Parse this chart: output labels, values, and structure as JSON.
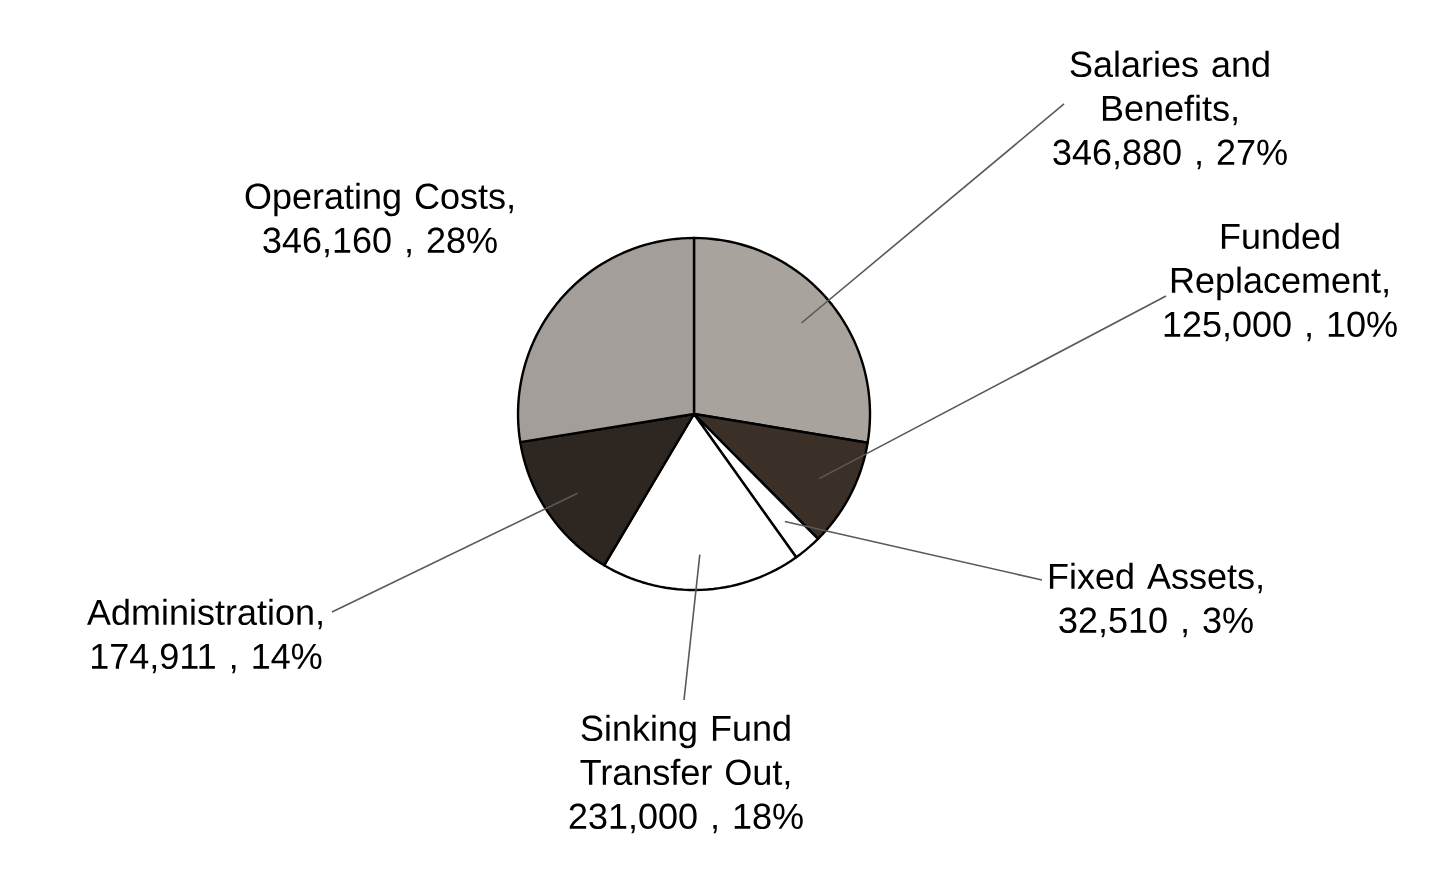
{
  "chart_data": {
    "type": "pie",
    "categories": [
      "Salaries and Benefits",
      "Funded Replacement",
      "Fixed Assets",
      "Sinking Fund Transfer Out",
      "Administration",
      "Operating Costs"
    ],
    "values": [
      346880,
      125000,
      32510,
      231000,
      174911,
      346160
    ],
    "value_labels": [
      ", 346,880 , 27%",
      ", 125,000 , 10%",
      ", 32,510 , 3%",
      ", 231,000 , 18%",
      ", 174,911 , 14%",
      ", 346,160 , 28%"
    ],
    "colors": [
      "#a8a39d",
      "#3b3028",
      "#ffffff",
      "#ffffff",
      "#2e2620",
      "#a39e99"
    ]
  }
}
